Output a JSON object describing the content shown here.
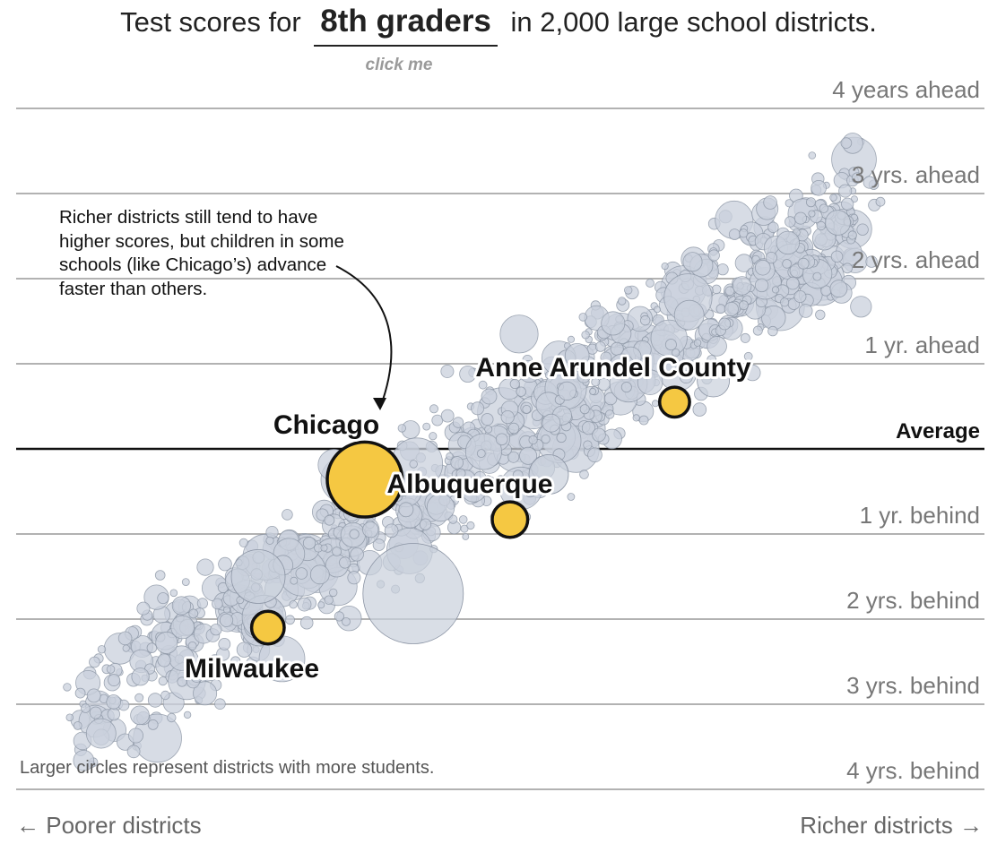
{
  "title": {
    "prefix": "Test scores for",
    "grade": "8th graders",
    "suffix": "in 2,000 large school districts.",
    "click_hint": "click me"
  },
  "annotation": "Richer districts still tend to have higher scores, but children in some schools (like Chicago’s) advance faster than others.",
  "footnote": "Larger circles represent districts with more students.",
  "x_axis": {
    "left_label": "← Poorer districts",
    "right_label": "Richer districts →"
  },
  "chart_data": {
    "type": "scatter",
    "title": "Test scores for 8th graders in 2,000 large school districts.",
    "x_label_left": "← Poorer districts",
    "x_label_right": "Richer districts →",
    "y_unit": "years relative to average grade level",
    "ylim": [
      -4,
      4
    ],
    "y_ticks": [
      {
        "value": 4,
        "label": "4 years ahead"
      },
      {
        "value": 3,
        "label": "3 yrs. ahead"
      },
      {
        "value": 2,
        "label": "2 yrs. ahead"
      },
      {
        "value": 1,
        "label": "1 yr. ahead"
      },
      {
        "value": 0,
        "label": "Average"
      },
      {
        "value": -1,
        "label": "1 yr. behind"
      },
      {
        "value": -2,
        "label": "2 yrs. behind"
      },
      {
        "value": -3,
        "label": "3 yrs. behind"
      },
      {
        "value": -4,
        "label": "4 yrs. behind"
      }
    ],
    "highlighted": [
      {
        "name": "Anne Arundel County",
        "x": 0.68,
        "y": 0.55,
        "size": 2.2
      },
      {
        "name": "Chicago",
        "x": 0.36,
        "y": -0.36,
        "size": 5.5
      },
      {
        "name": "Albuquerque",
        "x": 0.51,
        "y": -0.83,
        "size": 2.6
      },
      {
        "name": "Milwaukee",
        "x": 0.26,
        "y": -2.1,
        "size": 2.4
      }
    ],
    "districts_count": 2000,
    "colors": {
      "highlight": "#f5c842",
      "district": "#c9d0dc",
      "district_stroke": "#8a93a3"
    }
  }
}
